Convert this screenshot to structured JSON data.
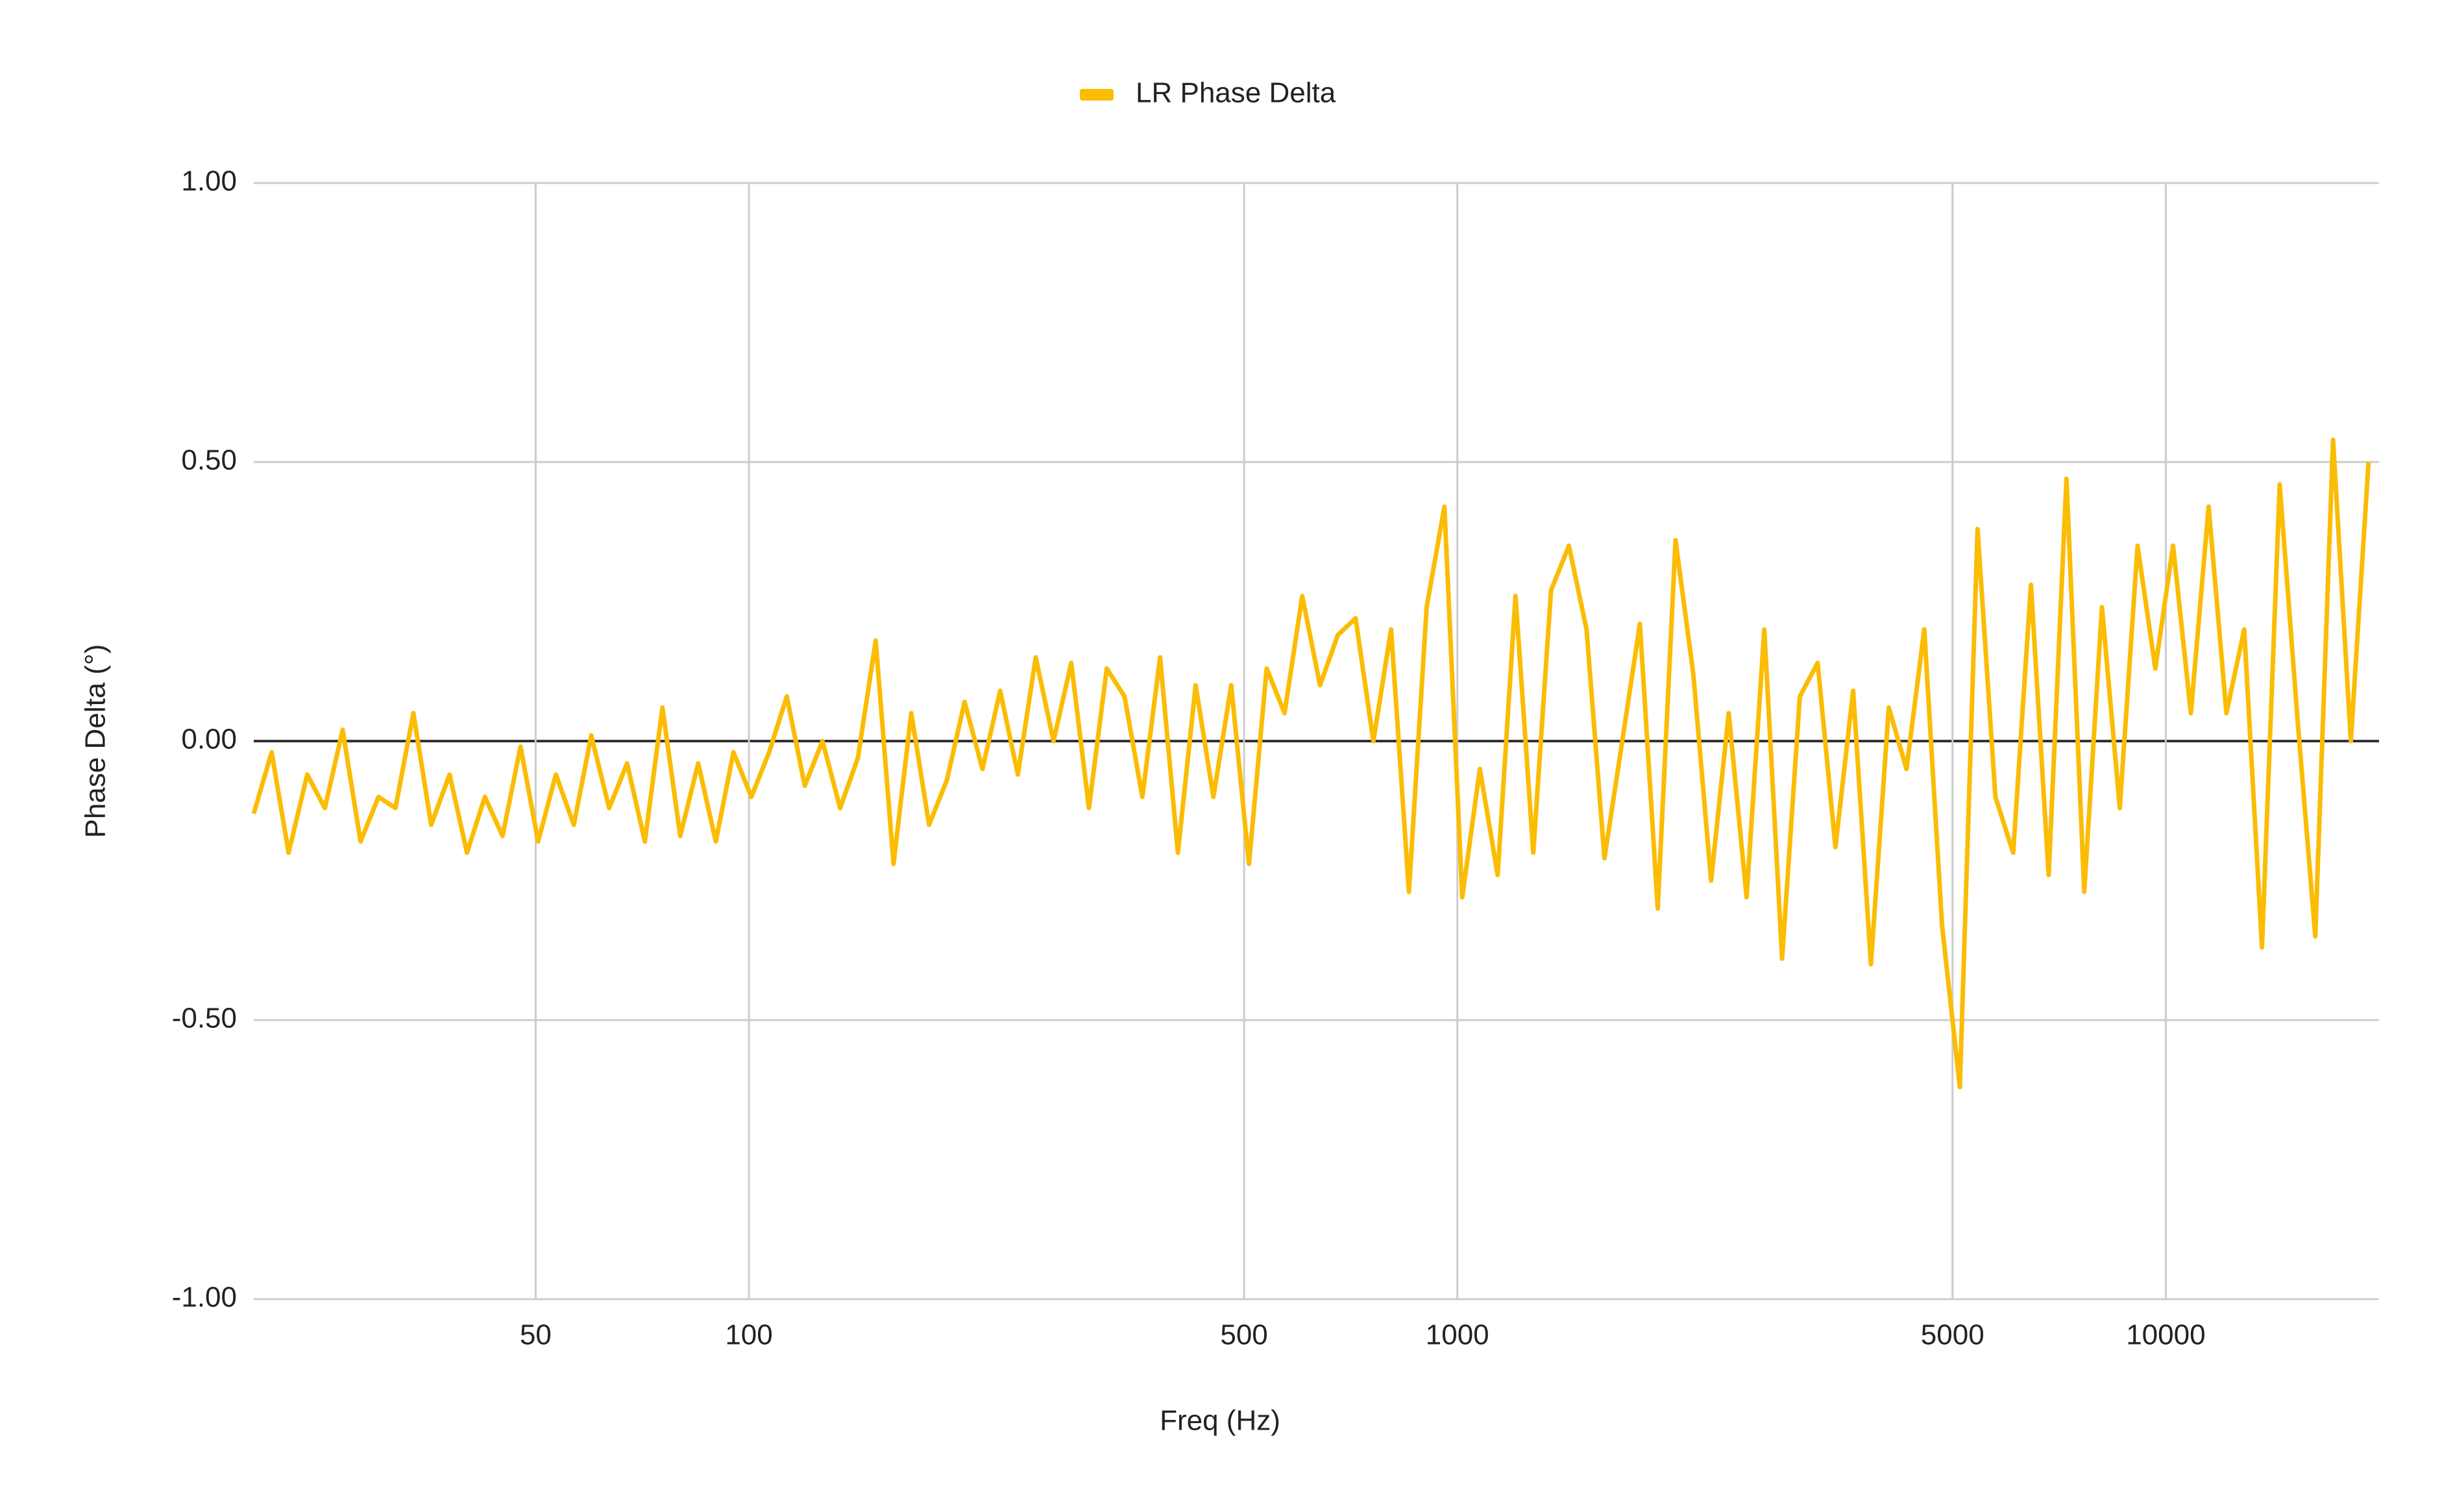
{
  "chart_data": {
    "type": "line",
    "x_label": "Freq (Hz)",
    "y_label": "Phase Delta (°)",
    "legend_position": "top",
    "xscale": "log",
    "grid": true,
    "xlim": [
      20,
      20000
    ],
    "ylim": [
      -1,
      1
    ],
    "xticks": [
      50,
      100,
      500,
      1000,
      5000,
      10000
    ],
    "yticks": [
      {
        "value": -1,
        "label": "-1.00"
      },
      {
        "value": -0.5,
        "label": "-0.50"
      },
      {
        "value": 0,
        "label": "0.00"
      },
      {
        "value": 0.5,
        "label": "0.50"
      },
      {
        "value": 1,
        "label": "1.00"
      }
    ],
    "x": [
      20,
      21.2,
      22.4,
      23.8,
      25.2,
      26.7,
      28.3,
      30,
      31.7,
      33.6,
      35.6,
      37.8,
      40,
      42.4,
      44.9,
      47.6,
      50.4,
      53.4,
      56.6,
      59.9,
      63.5,
      67.3,
      71.3,
      75.5,
      80,
      84.8,
      89.8,
      95.1,
      100.8,
      106.8,
      113.1,
      119.9,
      127,
      134.5,
      142.5,
      151,
      160,
      169.5,
      179.6,
      190.3,
      201.6,
      213.6,
      226.3,
      239.7,
      254,
      269.1,
      285.1,
      302,
      320,
      339,
      359.2,
      380.5,
      403.2,
      427.1,
      452.5,
      479.5,
      508,
      538.1,
      570.2,
      604,
      640,
      678,
      718.4,
      761.1,
      806.3,
      854.3,
      905,
      958.8,
      1016,
      1076,
      1140,
      1208,
      1280,
      1356,
      1437,
      1522,
      1613,
      1709,
      1810,
      1918,
      2032,
      2153,
      2281,
      2416,
      2560,
      2712,
      2873,
      3044,
      3225,
      3417,
      3620,
      3835,
      4064,
      4305,
      4561,
      4833,
      5120,
      5424,
      5747,
      6089,
      6451,
      6834,
      7241,
      7671,
      8127,
      8611,
      9123,
      9665,
      10240,
      10849,
      11494,
      12177,
      12902,
      13669,
      14482,
      15343,
      16255,
      17222,
      18245,
      19330
    ],
    "series": [
      {
        "name": "LR Phase Delta",
        "color": "#fbbc04",
        "values": [
          -0.13,
          -0.02,
          -0.2,
          -0.06,
          -0.12,
          0.02,
          -0.18,
          -0.1,
          -0.12,
          0.05,
          -0.15,
          -0.06,
          -0.2,
          -0.1,
          -0.17,
          -0.01,
          -0.18,
          -0.06,
          -0.15,
          0.01,
          -0.12,
          -0.04,
          -0.18,
          0.06,
          -0.17,
          -0.04,
          -0.18,
          -0.02,
          -0.1,
          -0.02,
          0.08,
          -0.08,
          0.0,
          -0.12,
          -0.03,
          0.18,
          -0.22,
          0.05,
          -0.15,
          -0.07,
          0.07,
          -0.05,
          0.09,
          -0.06,
          0.15,
          0.0,
          0.14,
          -0.12,
          0.13,
          0.08,
          -0.1,
          0.15,
          -0.2,
          0.1,
          -0.1,
          0.1,
          -0.22,
          0.13,
          0.05,
          0.26,
          0.1,
          0.19,
          0.22,
          0.0,
          0.2,
          -0.27,
          0.24,
          0.42,
          -0.28,
          -0.05,
          -0.24,
          0.26,
          -0.2,
          0.27,
          0.35,
          0.2,
          -0.21,
          0.0,
          0.21,
          -0.3,
          0.36,
          0.12,
          -0.25,
          0.05,
          -0.28,
          0.2,
          -0.39,
          0.08,
          0.14,
          -0.19,
          0.09,
          -0.4,
          0.06,
          -0.05,
          0.2,
          -0.33,
          -0.62,
          0.38,
          -0.1,
          -0.2,
          0.28,
          -0.24,
          0.47,
          -0.27,
          0.24,
          -0.12,
          0.35,
          0.13,
          0.35,
          0.05,
          0.42,
          0.05,
          0.2,
          -0.37,
          0.46,
          0.04,
          -0.35,
          0.54,
          0.0,
          0.5
        ]
      }
    ]
  }
}
